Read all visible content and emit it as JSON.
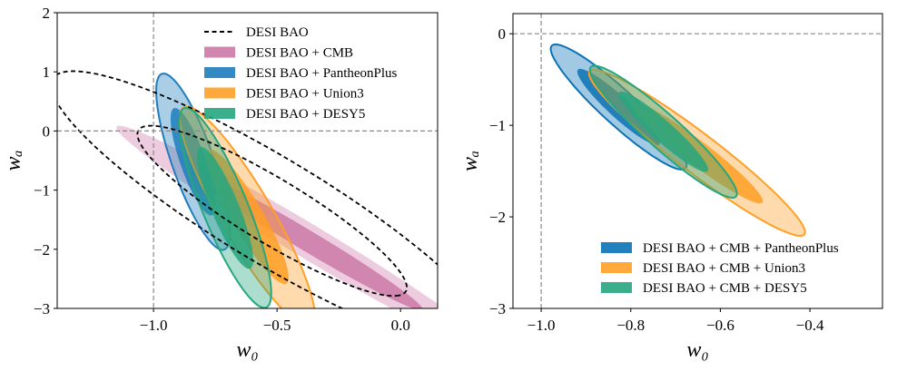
{
  "chart_data": [
    {
      "type": "contour",
      "xlabel": "w₀",
      "ylabel": "wₐ",
      "xlim": [
        -1.39,
        0.15
      ],
      "ylim": [
        -3,
        2
      ],
      "xticks": [
        -1.0,
        -0.5,
        0.0
      ],
      "xtick_labels": [
        "−1.0",
        "−0.5",
        "0.0"
      ],
      "yticks": [
        -3,
        -2,
        -1,
        0,
        1,
        2
      ],
      "ytick_labels": [
        "−3",
        "−2",
        "−1",
        "0",
        "1",
        "2"
      ],
      "reference_lines": {
        "w0": -1.0,
        "wa": 0
      },
      "legend_placement": "top-right",
      "levels": [
        "68%",
        "95%"
      ],
      "series": [
        {
          "name": "DESI BAO",
          "style": "dashed",
          "color": "#000000",
          "center": [
            -0.52,
            -1.35
          ],
          "sigma": [
            0.36,
            0.95
          ],
          "rho": -0.9
        },
        {
          "name": "DESI BAO + CMB",
          "style": "filled",
          "color": "#cc79a7",
          "center": [
            -0.38,
            -1.85
          ],
          "sigma": [
            0.31,
            0.78
          ],
          "rho": -0.985
        },
        {
          "name": "DESI BAO + PantheonPlus",
          "style": "filled",
          "color": "#1f7dbd",
          "center": [
            -0.84,
            -0.52
          ],
          "sigma": [
            0.06,
            0.6
          ],
          "rho": -0.8
        },
        {
          "name": "DESI BAO + Union3",
          "style": "filled",
          "color": "#ff9f26",
          "center": [
            -0.62,
            -1.45
          ],
          "sigma": [
            0.11,
            0.75
          ],
          "rho": -0.9
        },
        {
          "name": "DESI BAO + DESY5",
          "style": "filled",
          "color": "#26a67f",
          "center": [
            -0.71,
            -1.3
          ],
          "sigma": [
            0.075,
            0.68
          ],
          "rho": -0.85
        }
      ]
    },
    {
      "type": "contour",
      "xlabel": "w₀",
      "ylabel": "wₐ",
      "xlim": [
        -1.063,
        -0.238
      ],
      "ylim": [
        -3,
        0.22
      ],
      "xticks": [
        -1.0,
        -0.8,
        -0.6,
        -0.4
      ],
      "xtick_labels": [
        "−1.0",
        "−0.8",
        "−0.6",
        "−0.4"
      ],
      "yticks": [
        -3,
        -2,
        -1,
        0
      ],
      "ytick_labels": [
        "−3",
        "−2",
        "−1",
        "0"
      ],
      "reference_lines": {
        "w0": -1.0,
        "wa": 0
      },
      "legend_placement": "bottom-right",
      "levels": [
        "68%",
        "95%"
      ],
      "series": [
        {
          "name": "DESI BAO + CMB + PantheonPlus",
          "style": "filled",
          "color": "#0a72b5",
          "center": [
            -0.827,
            -0.8
          ],
          "sigma": [
            0.061,
            0.275
          ],
          "rho": -0.93
        },
        {
          "name": "DESI BAO + CMB + Union3",
          "style": "filled",
          "color": "#ff9f26",
          "center": [
            -0.652,
            -1.3
          ],
          "sigma": [
            0.097,
            0.365
          ],
          "rho": -0.955
        },
        {
          "name": "DESI BAO + CMB + DESY5",
          "style": "filled",
          "color": "#26a67f",
          "center": [
            -0.727,
            -1.07
          ],
          "sigma": [
            0.066,
            0.29
          ],
          "rho": -0.94
        }
      ]
    }
  ]
}
